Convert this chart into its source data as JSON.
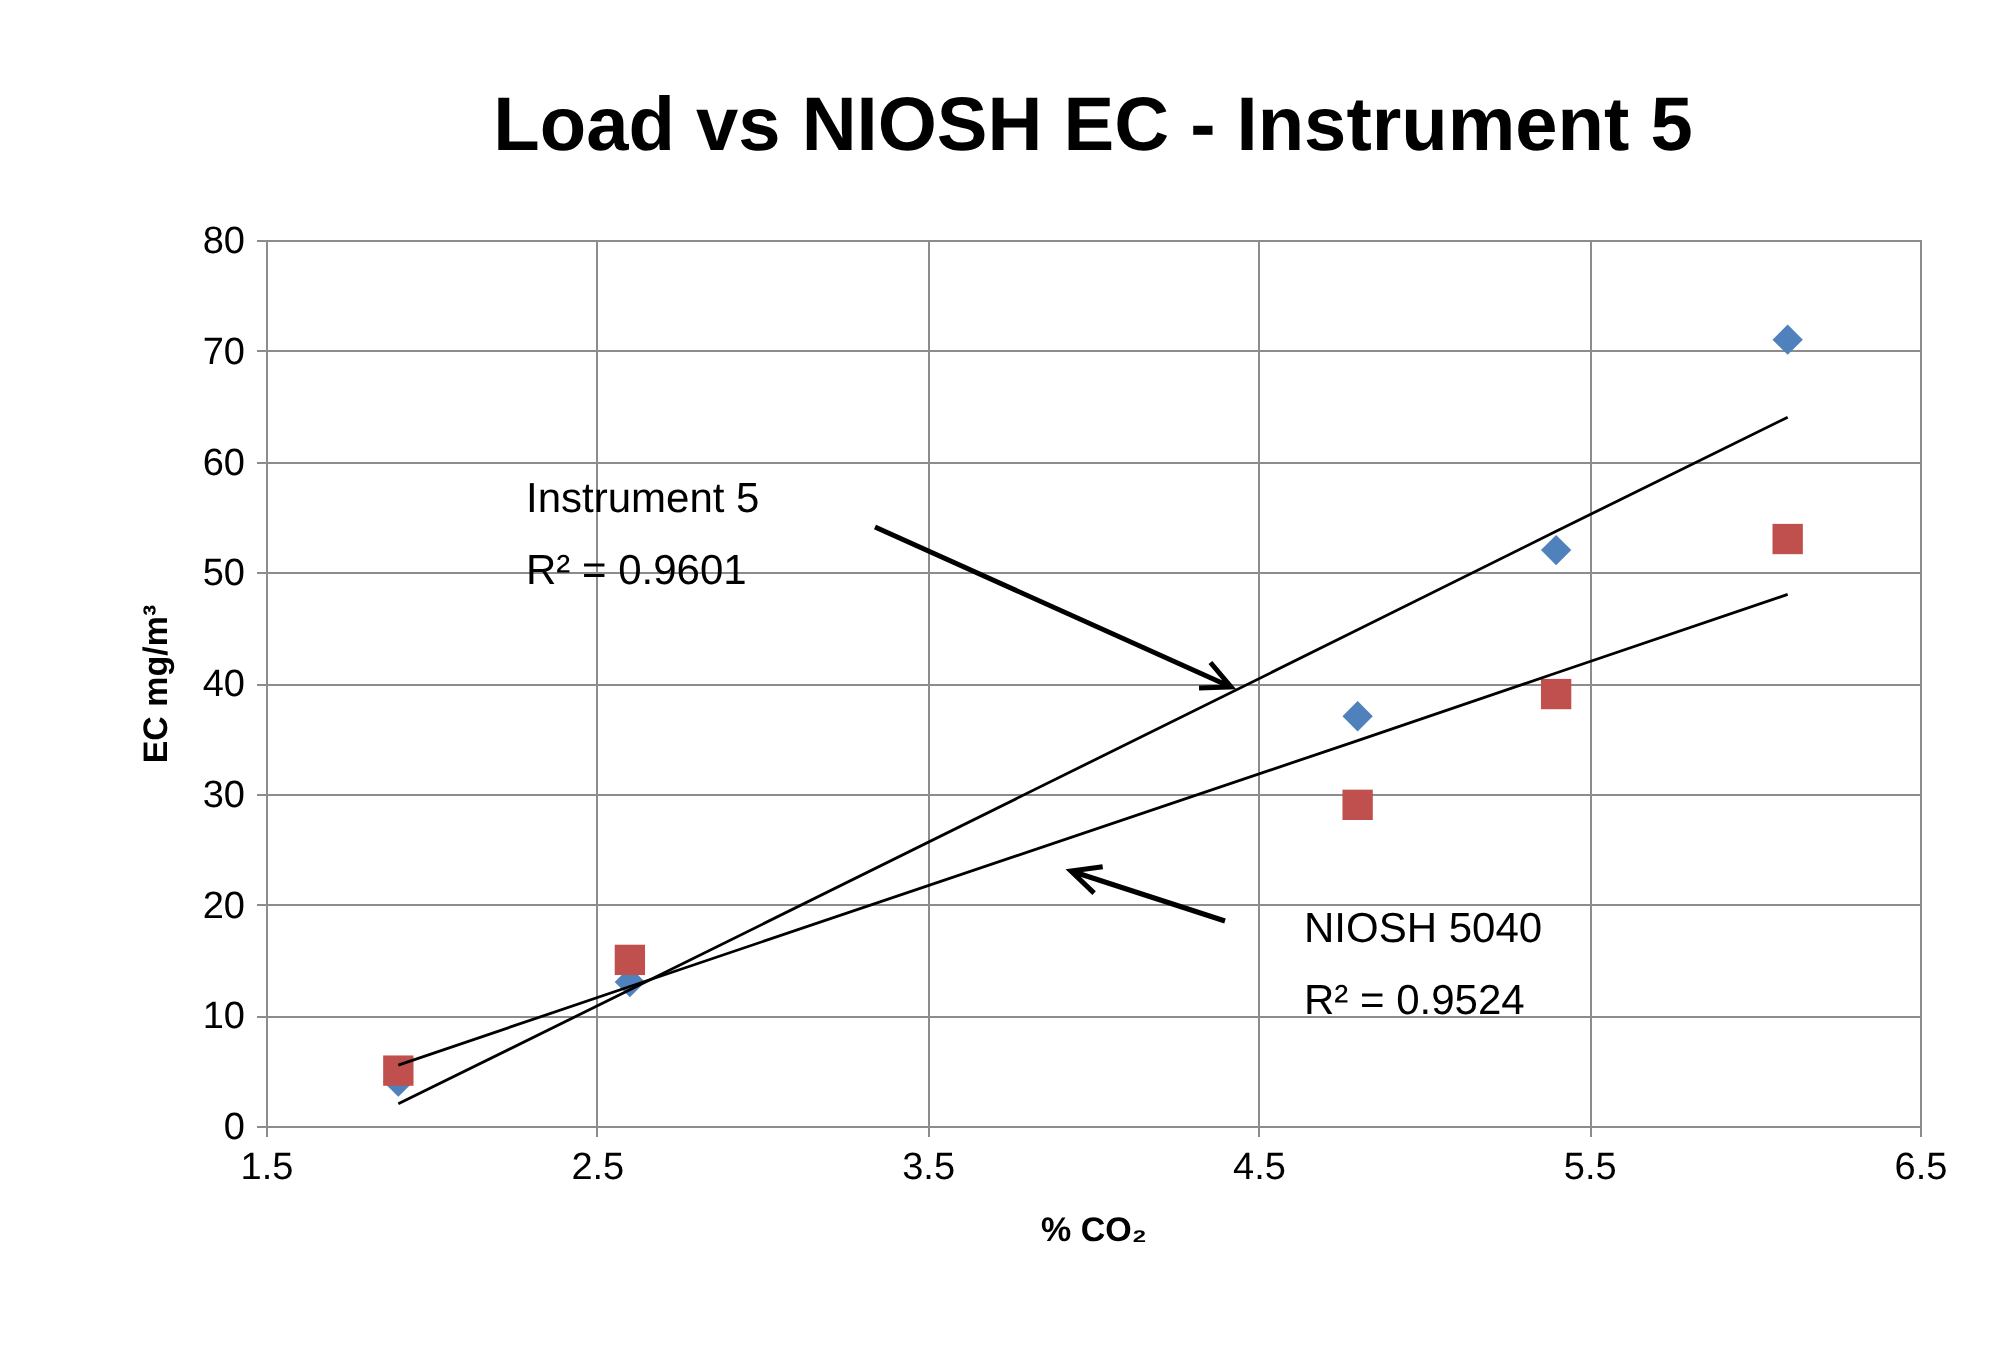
{
  "chart_data": {
    "type": "scatter",
    "title": "Load vs NIOSH EC - Instrument 5",
    "xlabel": "% CO₂",
    "ylabel": "EC mg/m³",
    "x": [
      1.9,
      2.6,
      4.8,
      5.4,
      6.1
    ],
    "series": [
      {
        "type": "scatter",
        "color": "#4f81bd",
        "marker": "diamond",
        "values": [
          4,
          13,
          37,
          52,
          71
        ]
      },
      {
        "type": "scatter",
        "color": "#c0504d",
        "marker": "square",
        "values": [
          5,
          15,
          29,
          39,
          53
        ]
      },
      {
        "type": "line",
        "color": "#000000",
        "marker": "none",
        "values": [
          2,
          12.3,
          44.8,
          53.7,
          64
        ]
      },
      {
        "type": "line",
        "color": "#000000",
        "marker": "none",
        "values": [
          5.5,
          12.6,
          34.8,
          40.9,
          48
        ]
      }
    ],
    "annotations": [
      "Instrument  5\nR² = 0.9601",
      "NIOSH 5040\nR² = 0.9524"
    ],
    "xlim": [
      1.5,
      6.5
    ],
    "xticks": [
      1.5,
      2.5,
      3.5,
      4.5,
      5.5,
      6.5
    ],
    "ylim": [
      0,
      80
    ],
    "yticks": [
      0,
      10,
      20,
      30,
      40,
      50,
      60,
      70,
      80
    ],
    "grid": true
  }
}
